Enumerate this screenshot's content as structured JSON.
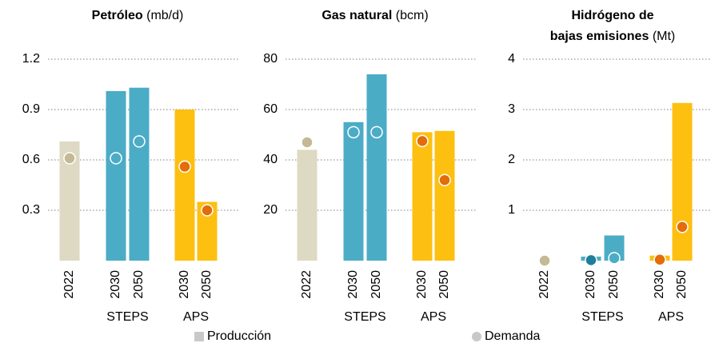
{
  "chart_data": [
    {
      "type": "bar_dot",
      "title_lines": [
        "Petróleo"
      ],
      "unit": "(mb/d)",
      "categories": [
        "2022",
        "2030",
        "2050",
        "2030",
        "2050"
      ],
      "groups": [
        null,
        "STEPS",
        "STEPS",
        "APS",
        "APS"
      ],
      "bars": {
        "values": [
          0.71,
          1.01,
          1.03,
          0.9,
          0.35
        ],
        "colors": [
          "#ddd9c3",
          "#4bacc6",
          "#4bacc6",
          "#fdc010",
          "#fdc010"
        ]
      },
      "dots": {
        "values": [
          0.61,
          0.61,
          0.71,
          0.56,
          0.3
        ],
        "colors": [
          "#c4b994",
          "#4bacc6",
          "#4bacc6",
          "#e46c0a",
          "#e46c0a"
        ]
      },
      "ylim": [
        0,
        1.2
      ],
      "yticks": [
        0.3,
        0.6,
        0.9,
        1.2
      ],
      "grid": true
    },
    {
      "type": "bar_dot",
      "title_lines": [
        "Gas natural"
      ],
      "unit": "(bcm)",
      "categories": [
        "2022",
        "2030",
        "2050",
        "2030",
        "2050"
      ],
      "groups": [
        null,
        "STEPS",
        "STEPS",
        "APS",
        "APS"
      ],
      "bars": {
        "values": [
          44,
          55,
          74,
          51,
          51.5
        ],
        "colors": [
          "#ddd9c3",
          "#4bacc6",
          "#4bacc6",
          "#fdc010",
          "#fdc010"
        ]
      },
      "dots": {
        "values": [
          47,
          51,
          51,
          47.5,
          32
        ],
        "colors": [
          "#c4b994",
          "#4bacc6",
          "#4bacc6",
          "#e46c0a",
          "#e46c0a"
        ]
      },
      "ylim": [
        0,
        80
      ],
      "yticks": [
        20,
        40,
        60,
        80
      ],
      "grid": true
    },
    {
      "type": "bar_dot",
      "title_lines": [
        "Hidrógeno de",
        "bajas emisiones"
      ],
      "unit": "(Mt)",
      "categories": [
        "2022",
        "2030",
        "2050",
        "2030",
        "2050"
      ],
      "groups": [
        null,
        "STEPS",
        "STEPS",
        "APS",
        "APS"
      ],
      "bars": {
        "values": [
          0,
          0.08,
          0.5,
          0.1,
          3.13
        ],
        "colors": [
          "#ddd9c3",
          "#4bacc6",
          "#4bacc6",
          "#fdc010",
          "#fdc010"
        ]
      },
      "dots": {
        "values": [
          0,
          0.01,
          0.05,
          0.02,
          0.67
        ],
        "colors": [
          "#c4b994",
          "#1f7f9a",
          "#4bacc6",
          "#e46c0a",
          "#e46c0a"
        ]
      },
      "ylim": [
        0,
        4
      ],
      "yticks": [
        1,
        2,
        3,
        4
      ],
      "grid": true
    }
  ],
  "legend": [
    {
      "name": "Producción",
      "color": "#c8c8c8",
      "shape": "square"
    },
    {
      "name": "Demanda",
      "color": "#c8c8c8",
      "shape": "circle"
    }
  ]
}
